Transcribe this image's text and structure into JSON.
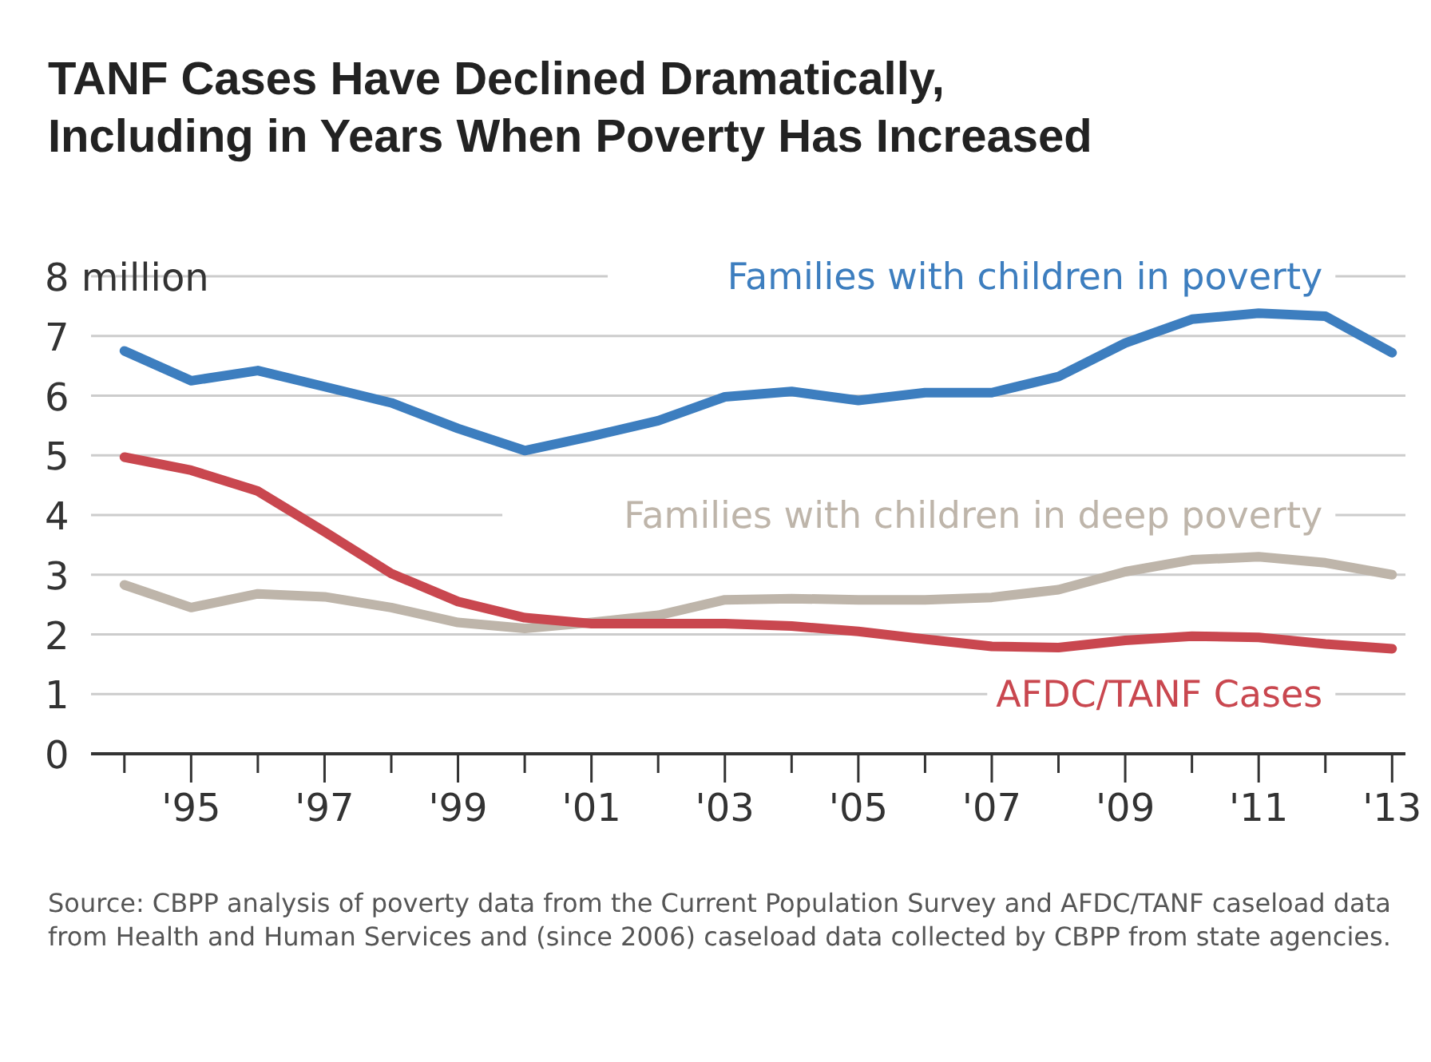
{
  "chart_data": {
    "type": "line",
    "title": "TANF Cases Have Declined Dramatically,\nIncluding in Years When Poverty Has Increased",
    "x": [
      1994,
      1995,
      1996,
      1997,
      1998,
      1999,
      2000,
      2001,
      2002,
      2003,
      2004,
      2005,
      2006,
      2007,
      2008,
      2009,
      2010,
      2011,
      2012,
      2013
    ],
    "series": [
      {
        "name": "Families with children in poverty",
        "color": "#3d7ebf",
        "values": [
          6.75,
          6.25,
          6.42,
          6.15,
          5.88,
          5.45,
          5.08,
          5.32,
          5.58,
          5.98,
          6.07,
          5.92,
          6.05,
          6.05,
          6.32,
          6.88,
          7.28,
          7.38,
          7.33,
          6.72
        ]
      },
      {
        "name": "Families with children in deep poverty",
        "color": "#beb5aa",
        "values": [
          2.83,
          2.45,
          2.68,
          2.63,
          2.45,
          2.2,
          2.1,
          2.2,
          2.32,
          2.58,
          2.6,
          2.58,
          2.58,
          2.62,
          2.75,
          3.05,
          3.25,
          3.3,
          3.2,
          3.0
        ]
      },
      {
        "name": "AFDC/TANF Cases",
        "color": "#c9474f",
        "values": [
          4.97,
          4.75,
          4.4,
          3.72,
          3.02,
          2.55,
          2.28,
          2.18,
          2.18,
          2.18,
          2.14,
          2.05,
          1.92,
          1.8,
          1.78,
          1.9,
          1.97,
          1.95,
          1.84,
          1.76
        ]
      }
    ],
    "xlim": [
      1993.5,
      2013.2
    ],
    "xticks": [
      {
        "value": 1994,
        "label": null
      },
      {
        "value": 1995,
        "label": "'95"
      },
      {
        "value": 1996,
        "label": null
      },
      {
        "value": 1997,
        "label": "'97"
      },
      {
        "value": 1998,
        "label": null
      },
      {
        "value": 1999,
        "label": "'99"
      },
      {
        "value": 2000,
        "label": null
      },
      {
        "value": 2001,
        "label": "'01"
      },
      {
        "value": 2002,
        "label": null
      },
      {
        "value": 2003,
        "label": "'03"
      },
      {
        "value": 2004,
        "label": null
      },
      {
        "value": 2005,
        "label": "'05"
      },
      {
        "value": 2006,
        "label": null
      },
      {
        "value": 2007,
        "label": "'07"
      },
      {
        "value": 2008,
        "label": null
      },
      {
        "value": 2009,
        "label": "'09"
      },
      {
        "value": 2010,
        "label": null
      },
      {
        "value": 2011,
        "label": "'11"
      },
      {
        "value": 2012,
        "label": null
      },
      {
        "value": 2013,
        "label": "'13"
      }
    ],
    "ylim": [
      0,
      8
    ],
    "yticks": [
      0,
      1,
      2,
      3,
      4,
      5,
      6,
      7,
      {
        "value": 8,
        "label": "8 million"
      }
    ],
    "grid": "y",
    "legend": false,
    "marker": "none",
    "line_style": "solid",
    "annotations": [
      "Source: CBPP analysis of poverty data from the Current Population Survey and AFDC/TANF caseload data from Health and Human Services and (since 2006) caseload data collected by CBPP from state agencies."
    ]
  }
}
